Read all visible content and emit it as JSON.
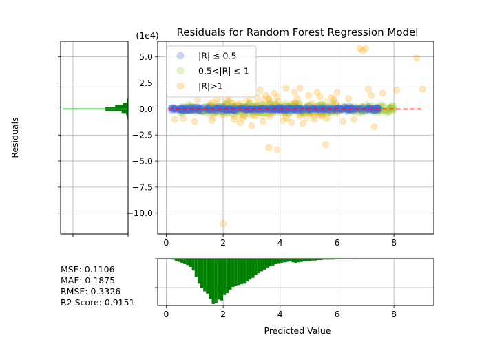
{
  "figure": {
    "title": "Residuals for Random Forest Regression Model",
    "exponent_label": "(1e4)",
    "ylabel": "Residuals",
    "xlabel": "Predicted Value"
  },
  "metrics": [
    {
      "label": "MSE",
      "value": "0.1106"
    },
    {
      "label": "MAE",
      "value": "0.1875"
    },
    {
      "label": "RMSE",
      "value": "0.3326"
    },
    {
      "label": "R2 Score",
      "value": "0.9151"
    }
  ],
  "metric_lines": [
    "MSE: 0.1106",
    "MAE: 0.1875",
    "RMSE: 0.3326",
    "R2 Score: 0.9151"
  ],
  "colors": {
    "small": "#4169e1",
    "medium": "#9acd32",
    "large": "#ffa500",
    "zero_line": "#ff0000",
    "histogram": "#008000",
    "grid": "#b0b0b0"
  },
  "chart_data": [
    {
      "type": "scatter",
      "name": "main",
      "title": "Residuals for Random Forest Regression Model",
      "ylabel": "Residuals",
      "y_scale_label": "(1e4)",
      "xlim": [
        -0.3,
        9.4
      ],
      "ylim": [
        -12,
        6.5
      ],
      "x_ticks": [
        0,
        2,
        4,
        6,
        8
      ],
      "x_tick_labels": [
        "0",
        "2",
        "4",
        "6",
        "8"
      ],
      "y_ticks": [
        5.0,
        2.5,
        0.0,
        -2.5,
        -5.0,
        -7.5,
        -10.0
      ],
      "y_tick_labels": [
        "5.0",
        "2.5",
        "0.0",
        "−2.5",
        "−5.0",
        "−7.5",
        "−10.0"
      ],
      "grid": true,
      "legend_position": "upper-left",
      "legend": [
        {
          "label": "|R| ≤ 0.5",
          "color_key": "small"
        },
        {
          "label": "0.5<|R| ≤ 1",
          "color_key": "medium"
        },
        {
          "label": "|R|>1",
          "color_key": "large"
        }
      ],
      "zero_line": {
        "x": [
          0.1,
          9.0
        ],
        "y": 0,
        "style": "dashed"
      },
      "series": [
        {
          "name": "|R| ≤ 0.5",
          "color_key": "small",
          "bands": [
            [
              0.15,
              0.5,
              -0.25,
              0.25
            ],
            [
              0.5,
              1.5,
              -0.35,
              0.35
            ],
            [
              1.5,
              2.5,
              -0.35,
              0.35
            ],
            [
              2.5,
              4.0,
              -0.3,
              0.3
            ],
            [
              4.0,
              6.0,
              -0.3,
              0.3
            ],
            [
              6.0,
              7.5,
              -0.3,
              0.3
            ]
          ]
        },
        {
          "name": "0.5<|R| ≤ 1",
          "color_key": "medium",
          "bands": [
            [
              0.5,
              1.5,
              -0.7,
              0.7
            ],
            [
              1.5,
              3.5,
              -0.9,
              0.9
            ],
            [
              3.5,
              5.0,
              -0.8,
              0.8
            ],
            [
              5.0,
              7.0,
              -0.7,
              0.7
            ],
            [
              7.0,
              8.0,
              -0.6,
              0.6
            ]
          ]
        },
        {
          "name": "|R|>1",
          "color_key": "large",
          "points": [
            [
              0.3,
              -1.0
            ],
            [
              1.1,
              0.9
            ],
            [
              1.6,
              -1.1
            ],
            [
              2.2,
              1.2
            ],
            [
              2.6,
              -1.3
            ],
            [
              2.9,
              1.4
            ],
            [
              3.0,
              -1.6
            ],
            [
              3.2,
              1.1
            ],
            [
              3.4,
              -1.2
            ],
            [
              3.5,
              1.3
            ],
            [
              3.6,
              1.0
            ],
            [
              3.6,
              -3.7
            ],
            [
              3.8,
              1.5
            ],
            [
              3.9,
              -3.9
            ],
            [
              3.9,
              1.2
            ],
            [
              4.1,
              -1.1
            ],
            [
              4.2,
              2.0
            ],
            [
              4.5,
              1.6
            ],
            [
              4.6,
              1.0
            ],
            [
              4.7,
              2.0
            ],
            [
              4.8,
              -1.4
            ],
            [
              5.0,
              1.3
            ],
            [
              5.2,
              -1.0
            ],
            [
              5.4,
              1.2
            ],
            [
              5.6,
              -3.4
            ],
            [
              5.8,
              1.1
            ],
            [
              6.0,
              1.6
            ],
            [
              6.2,
              -1.2
            ],
            [
              6.4,
              1.0
            ],
            [
              6.6,
              -1.0
            ],
            [
              6.8,
              5.8
            ],
            [
              6.9,
              5.6
            ],
            [
              7.0,
              5.8
            ],
            [
              7.1,
              1.9
            ],
            [
              7.2,
              1.3
            ],
            [
              7.3,
              -1.7
            ],
            [
              7.6,
              1.5
            ],
            [
              8.1,
              1.8
            ],
            [
              8.8,
              4.9
            ],
            [
              9.0,
              1.9
            ],
            [
              1.0,
              -1.2
            ],
            [
              1.8,
              1.0
            ],
            [
              2.4,
              -1.0
            ],
            [
              4.4,
              -1.3
            ],
            [
              3.3,
              1.8
            ],
            [
              5.3,
              1.6
            ],
            [
              0.6,
              -0.9
            ],
            [
              2.0,
              -11.0
            ]
          ],
          "bands": [
            [
              1.5,
              6.0,
              -1.4,
              1.4
            ]
          ]
        }
      ]
    },
    {
      "type": "bar",
      "name": "residual_histogram",
      "orientation": "horizontal",
      "ylim": [
        -12,
        6.5
      ],
      "y_ticks": [
        5.0,
        2.5,
        0.0,
        -2.5,
        -5.0,
        -7.5,
        -10.0
      ],
      "grid": true,
      "bins": [
        [
          -1.0,
          -0.6
        ],
        [
          -0.6,
          -0.4
        ],
        [
          -0.4,
          -0.2
        ],
        [
          -0.2,
          -0.05
        ],
        [
          -0.05,
          0.05
        ],
        [
          0.05,
          0.2
        ],
        [
          0.2,
          0.4
        ],
        [
          0.4,
          0.6
        ],
        [
          0.6,
          1.0
        ]
      ],
      "values": [
        0.01,
        0.03,
        0.1,
        0.35,
        1.0,
        0.35,
        0.2,
        0.08,
        0.02
      ]
    },
    {
      "type": "bar",
      "name": "predicted_histogram",
      "orientation": "vertical-inverted",
      "xlabel": "Predicted Value",
      "xlim": [
        -0.3,
        9.4
      ],
      "x_ticks": [
        0,
        2,
        4,
        6,
        8
      ],
      "x_tick_labels": [
        "0",
        "2",
        "4",
        "6",
        "8"
      ],
      "grid": true,
      "bin_width": 0.1,
      "bin_start": 0.2,
      "values": [
        0.02,
        0.05,
        0.07,
        0.09,
        0.12,
        0.14,
        0.18,
        0.26,
        0.4,
        0.55,
        0.65,
        0.72,
        0.77,
        0.88,
        1.0,
        0.97,
        0.9,
        0.92,
        0.8,
        0.76,
        0.68,
        0.62,
        0.6,
        0.58,
        0.56,
        0.55,
        0.5,
        0.46,
        0.42,
        0.36,
        0.32,
        0.28,
        0.24,
        0.2,
        0.17,
        0.15,
        0.12,
        0.1,
        0.09,
        0.08,
        0.07,
        0.06,
        0.08,
        0.09,
        0.08,
        0.07,
        0.06,
        0.06,
        0.05,
        0.04,
        0.04,
        0.03,
        0.03,
        0.02,
        0.02,
        0.02,
        0.02,
        0.01,
        0.01,
        0.01,
        0.01,
        0.01,
        0.01,
        0.01
      ]
    }
  ]
}
